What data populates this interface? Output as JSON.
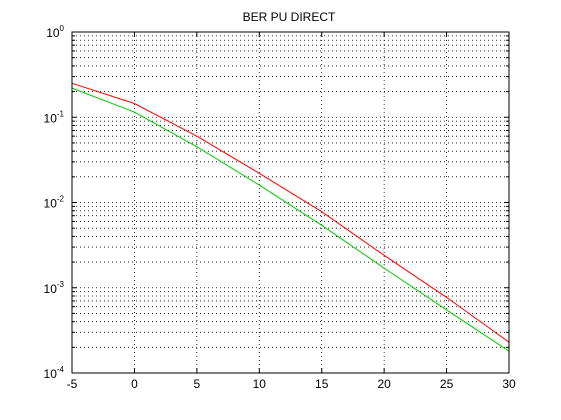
{
  "chart_data": {
    "type": "line",
    "title": "BER PU DIRECT",
    "xlabel": "",
    "ylabel": "",
    "xlim": [
      -5,
      30
    ],
    "ylim": [
      0.0001,
      1
    ],
    "yscale": "log",
    "grid": true,
    "x_ticks": [
      -5,
      0,
      5,
      10,
      15,
      20,
      25,
      30
    ],
    "x_tick_labels": [
      "-5",
      "0",
      "5",
      "10",
      "15",
      "20",
      "25",
      "30"
    ],
    "y_ticks": [
      1,
      0.1,
      0.01,
      0.001,
      0.0001
    ],
    "y_tick_labels": [
      {
        "base": "10",
        "exp": "0"
      },
      {
        "base": "10",
        "exp": "-1"
      },
      {
        "base": "10",
        "exp": "-2"
      },
      {
        "base": "10",
        "exp": "-3"
      },
      {
        "base": "10",
        "exp": "-4"
      }
    ],
    "x": [
      -5,
      0,
      5,
      10,
      15,
      20,
      25,
      30
    ],
    "series": [
      {
        "color": "#ff0000",
        "values": [
          0.25,
          0.145,
          0.06,
          0.022,
          0.0078,
          0.0024,
          0.00077,
          0.00023
        ]
      },
      {
        "color": "#00cc00",
        "values": [
          0.22,
          0.115,
          0.045,
          0.016,
          0.0054,
          0.0017,
          0.00055,
          0.00018
        ]
      }
    ]
  }
}
